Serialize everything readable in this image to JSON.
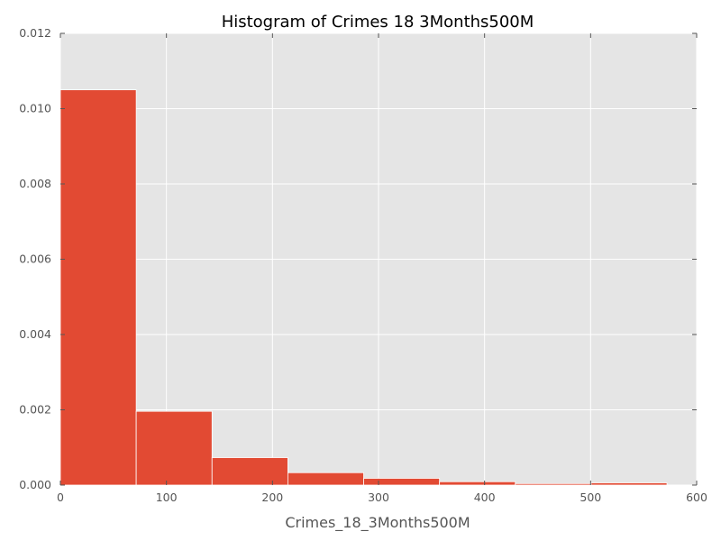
{
  "chart_data": {
    "type": "bar",
    "title": "Histogram of Crimes 18 3Months500M",
    "xlabel": "Crimes_18_3Months500M",
    "ylabel": "",
    "xlim": [
      0,
      600
    ],
    "ylim": [
      0,
      0.012
    ],
    "xticks": [
      "0",
      "100",
      "200",
      "300",
      "400",
      "500",
      "600"
    ],
    "yticks": [
      "0.000",
      "0.002",
      "0.004",
      "0.006",
      "0.008",
      "0.010",
      "0.012"
    ],
    "bin_edges": [
      0,
      71.5,
      143,
      214.5,
      286,
      357.5,
      429,
      500.5,
      572
    ],
    "values": [
      0.0105,
      0.00196,
      0.00073,
      0.00033,
      0.00018,
      9e-05,
      4e-05,
      6e-05
    ],
    "grid": true,
    "legend": "none",
    "colors": {
      "bar": "#E24A33",
      "plot_background": "#E5E5E5",
      "grid": "#FFFFFF",
      "bar_edge": "#FFFFFF"
    }
  }
}
